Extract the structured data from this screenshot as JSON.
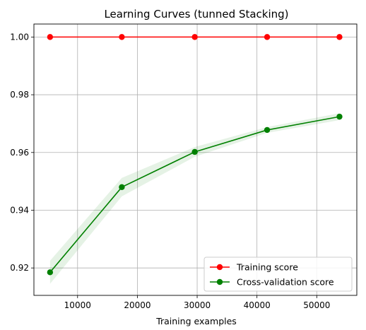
{
  "chart_data": {
    "type": "line",
    "title": "Learning Curves (tunned Stacking)",
    "xlabel": "Training examples",
    "ylabel": "",
    "xlim": [
      2700,
      56700
    ],
    "ylim": [
      0.9105,
      1.0045
    ],
    "x_ticks": [
      10000,
      20000,
      30000,
      40000,
      50000
    ],
    "x_tick_labels": [
      "10000",
      "20000",
      "30000",
      "40000",
      "50000"
    ],
    "y_ticks": [
      0.92,
      0.94,
      0.96,
      0.98,
      1.0
    ],
    "y_tick_labels": [
      "0.92",
      "0.94",
      "0.96",
      "0.98",
      "1.00"
    ],
    "grid": true,
    "legend_position": "lower-right",
    "x": [
      5400,
      17400,
      29600,
      41700,
      53800
    ],
    "series": [
      {
        "name": "Training score",
        "color": "#ff0000",
        "marker": "circle",
        "values": [
          1.0,
          1.0,
          1.0,
          1.0,
          1.0
        ],
        "band_lower": [
          1.0,
          1.0,
          1.0,
          1.0,
          1.0
        ],
        "band_upper": [
          1.0,
          1.0,
          1.0,
          1.0,
          1.0
        ],
        "band_color": "#ff0000"
      },
      {
        "name": "Cross-validation score",
        "color": "#008000",
        "marker": "circle",
        "values": [
          0.9185,
          0.948,
          0.9602,
          0.9678,
          0.9724
        ],
        "band_lower": [
          0.9145,
          0.9448,
          0.9585,
          0.9668,
          0.9712
        ],
        "band_upper": [
          0.9225,
          0.9512,
          0.9619,
          0.9688,
          0.9736
        ],
        "band_color": "#008000"
      }
    ]
  }
}
